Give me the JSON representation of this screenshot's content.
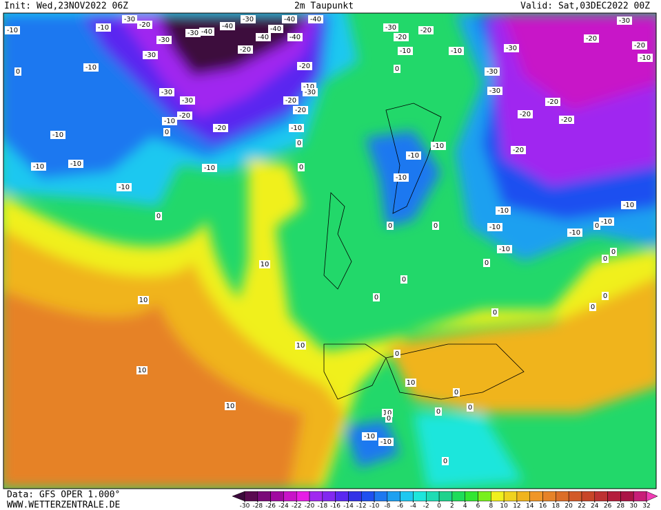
{
  "header": {
    "init": "Init: Wed,23NOV2022 06Z",
    "title": "2m Taupunkt",
    "valid": "Valid: Sat,03DEC2022 00Z"
  },
  "map": {
    "contour_labels": [
      -10,
      -10,
      -30,
      -20,
      -30,
      -30,
      -40,
      -40,
      -30,
      -40,
      -40,
      -40,
      -40,
      -40,
      -30,
      -20,
      -30,
      -20,
      -20,
      -10,
      -10,
      -30,
      -20,
      -30,
      -20,
      -10,
      -10,
      0,
      -20,
      0,
      -30,
      -30,
      -30,
      -30,
      -10,
      -30,
      -20,
      -20,
      -20,
      -20,
      -20,
      -10,
      0,
      -20,
      -20,
      -10,
      -10,
      0,
      -10,
      -10,
      -20,
      -10,
      -10,
      -10,
      0,
      -10,
      -10,
      0,
      0,
      -10,
      -10,
      0,
      -10,
      -10,
      -10,
      0,
      -10,
      10,
      0,
      0,
      0,
      0,
      0,
      0,
      10,
      0,
      0,
      10,
      0,
      10,
      10,
      0,
      10,
      0,
      0,
      10,
      0,
      -10,
      -10,
      0
    ]
  },
  "colorbar": {
    "ticks": [
      -30,
      -28,
      -26,
      -24,
      -22,
      -20,
      -18,
      -16,
      -14,
      -12,
      -10,
      -8,
      -6,
      -4,
      -2,
      0,
      2,
      4,
      6,
      8,
      10,
      12,
      14,
      16,
      18,
      20,
      22,
      24,
      26,
      28,
      30,
      32
    ],
    "colors": [
      "#5a0a50",
      "#7a0a78",
      "#a00aa0",
      "#c814c8",
      "#e61ee6",
      "#a028f0",
      "#8228f0",
      "#5a28f0",
      "#3232e6",
      "#1e50f0",
      "#1e78f0",
      "#1ea0f0",
      "#1ec8f0",
      "#1ee6dc",
      "#1edcb4",
      "#1ed28c",
      "#1edc5a",
      "#32e632",
      "#78f01e",
      "#f0f01e",
      "#f0d21e",
      "#f0b41e",
      "#f09628",
      "#e68228",
      "#dc6e28",
      "#d25a28",
      "#c84628",
      "#be3232",
      "#b41e3c",
      "#aa1446",
      "#c81e78"
    ],
    "under_color": "#3c0a3c",
    "over_color": "#f03cb4"
  },
  "footer": {
    "data": "Data: GFS OPER 1.000°",
    "site": "WWW.WETTERZENTRALE.DE"
  }
}
